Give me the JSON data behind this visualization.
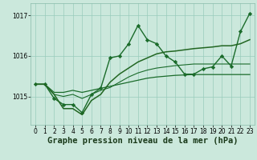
{
  "background_color": "#cbe8dc",
  "grid_color": "#99ccbb",
  "xlabel": "Graphe pression niveau de la mer (hPa)",
  "xlabel_fontsize": 7.5,
  "tick_fontsize": 5.5,
  "xlim": [
    -0.5,
    23.5
  ],
  "ylim": [
    1014.3,
    1017.3
  ],
  "yticks": [
    1015,
    1016,
    1017
  ],
  "xticks": [
    0,
    1,
    2,
    3,
    4,
    5,
    6,
    7,
    8,
    9,
    10,
    11,
    12,
    13,
    14,
    15,
    16,
    17,
    18,
    19,
    20,
    21,
    22,
    23
  ],
  "series": [
    {
      "x": [
        0,
        1,
        2,
        3,
        4,
        5,
        6,
        7,
        8,
        9,
        10,
        11,
        12,
        13,
        14,
        15,
        16,
        17,
        18,
        19,
        20,
        21,
        22,
        23
      ],
      "y": [
        1015.3,
        1015.3,
        1015.1,
        1015.1,
        1015.15,
        1015.1,
        1015.15,
        1015.2,
        1015.25,
        1015.3,
        1015.35,
        1015.4,
        1015.45,
        1015.48,
        1015.5,
        1015.52,
        1015.53,
        1015.54,
        1015.54,
        1015.54,
        1015.54,
        1015.54,
        1015.54,
        1015.54
      ],
      "color": "#1a6b2a",
      "lw": 0.9,
      "marker": null
    },
    {
      "x": [
        0,
        1,
        2,
        3,
        4,
        5,
        6,
        7,
        8,
        9,
        10,
        11,
        12,
        13,
        14,
        15,
        16,
        17,
        18,
        19,
        20,
        21,
        22,
        23
      ],
      "y": [
        1015.3,
        1015.3,
        1015.05,
        1015.0,
        1015.05,
        1014.95,
        1015.05,
        1015.15,
        1015.22,
        1015.35,
        1015.48,
        1015.58,
        1015.65,
        1015.7,
        1015.73,
        1015.76,
        1015.78,
        1015.8,
        1015.8,
        1015.8,
        1015.8,
        1015.8,
        1015.8,
        1015.8
      ],
      "color": "#1a6b2a",
      "lw": 0.8,
      "marker": null
    },
    {
      "x": [
        0,
        1,
        2,
        3,
        4,
        5,
        6,
        7,
        8,
        9,
        10,
        11,
        12,
        13,
        14,
        15,
        16,
        17,
        18,
        19,
        20,
        21,
        22,
        23
      ],
      "y": [
        1015.3,
        1015.3,
        1014.95,
        1014.8,
        1014.8,
        1014.6,
        1015.05,
        1015.2,
        1015.95,
        1016.0,
        1016.3,
        1016.75,
        1016.4,
        1016.3,
        1016.0,
        1015.85,
        1015.55,
        1015.55,
        1015.68,
        1015.73,
        1016.0,
        1015.75,
        1016.6,
        1017.05
      ],
      "color": "#1a6b2a",
      "lw": 1.0,
      "marker": "D",
      "ms": 2.2
    },
    {
      "x": [
        0,
        1,
        2,
        3,
        4,
        5,
        6,
        7,
        8,
        9,
        10,
        11,
        12,
        13,
        14,
        15,
        16,
        17,
        18,
        19,
        20,
        21,
        22,
        23
      ],
      "y": [
        1015.3,
        1015.3,
        1015.05,
        1014.7,
        1014.7,
        1014.55,
        1014.9,
        1015.05,
        1015.35,
        1015.55,
        1015.7,
        1015.85,
        1015.95,
        1016.05,
        1016.1,
        1016.12,
        1016.15,
        1016.18,
        1016.2,
        1016.22,
        1016.25,
        1016.25,
        1016.3,
        1016.4
      ],
      "color": "#226622",
      "lw": 1.1,
      "marker": null
    }
  ]
}
